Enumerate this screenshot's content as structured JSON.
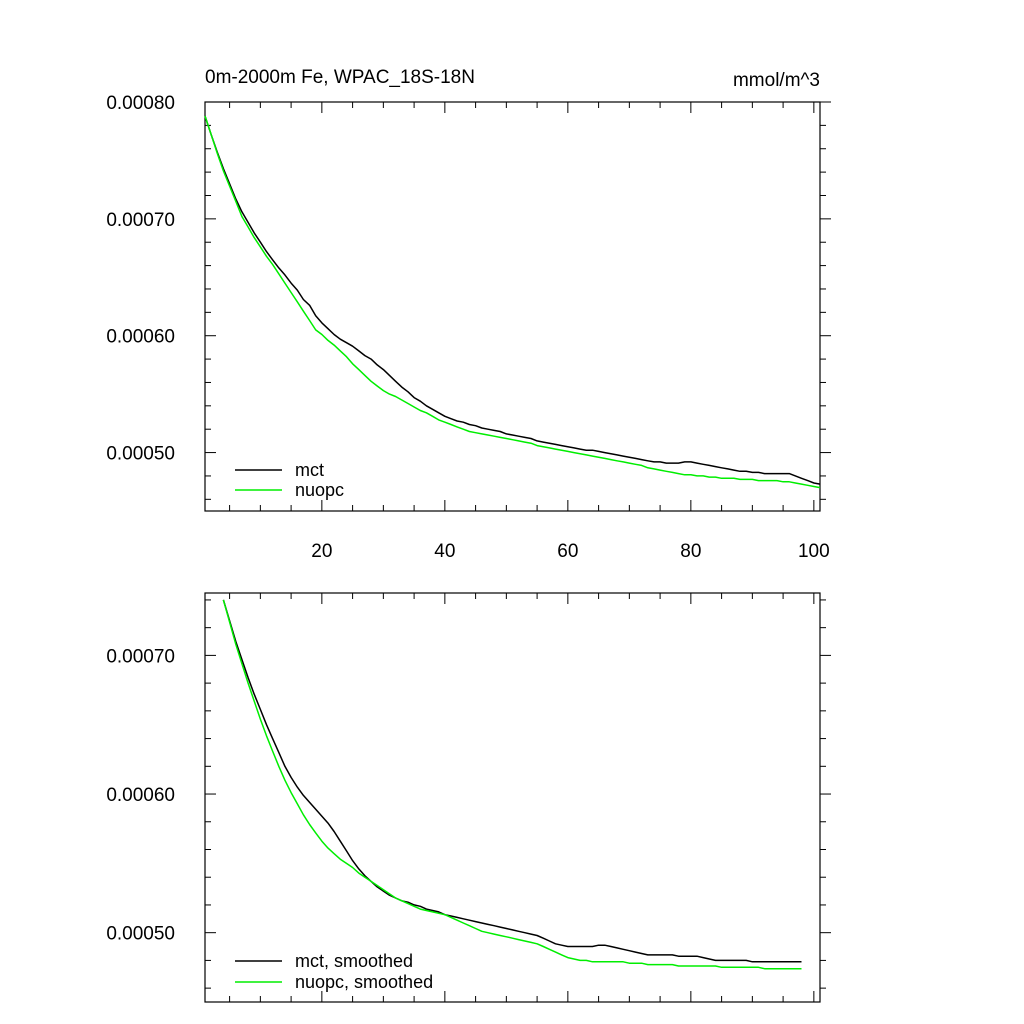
{
  "chart_data": [
    {
      "type": "line",
      "title": "0m-2000m Fe, WPAC_18S-18N",
      "units": "mmol/m^3",
      "xlim": [
        1,
        101
      ],
      "ylim": [
        0.00045,
        0.0008
      ],
      "x_ticks": [
        20,
        40,
        60,
        80,
        100
      ],
      "x_tick_labels": [
        "20",
        "40",
        "60",
        "80",
        "100"
      ],
      "y_ticks": [
        0.0005,
        0.0006,
        0.0007,
        0.0008
      ],
      "y_tick_labels": [
        "0.00050",
        "0.00060",
        "0.00070",
        "0.00080"
      ],
      "legend_position": "bottom-left",
      "x": [
        1,
        2,
        3,
        4,
        5,
        6,
        7,
        8,
        9,
        10,
        11,
        12,
        13,
        14,
        15,
        16,
        17,
        18,
        19,
        20,
        21,
        22,
        23,
        24,
        25,
        26,
        27,
        28,
        29,
        30,
        31,
        32,
        33,
        34,
        35,
        36,
        37,
        38,
        39,
        40,
        41,
        42,
        43,
        44,
        45,
        46,
        47,
        48,
        49,
        50,
        51,
        52,
        53,
        54,
        55,
        56,
        57,
        58,
        59,
        60,
        61,
        62,
        63,
        64,
        65,
        66,
        67,
        68,
        69,
        70,
        71,
        72,
        73,
        74,
        75,
        76,
        77,
        78,
        79,
        80,
        81,
        82,
        83,
        84,
        85,
        86,
        87,
        88,
        89,
        90,
        91,
        92,
        93,
        94,
        95,
        96,
        97,
        98,
        99,
        100,
        101
      ],
      "series": [
        {
          "name": "mct",
          "color": "#000000",
          "values": [
            0.000788,
            0.000772,
            0.000757,
            0.000743,
            0.00073,
            0.000717,
            0.000706,
            0.000697,
            0.000688,
            0.00068,
            0.000672,
            0.000665,
            0.000658,
            0.000652,
            0.000645,
            0.000639,
            0.000631,
            0.000626,
            0.000617,
            0.000611,
            0.000606,
            0.000601,
            0.000597,
            0.000594,
            0.000591,
            0.000587,
            0.000583,
            0.00058,
            0.000575,
            0.000571,
            0.000566,
            0.000561,
            0.000556,
            0.000552,
            0.000547,
            0.000544,
            0.00054,
            0.000537,
            0.000534,
            0.000531,
            0.000529,
            0.000527,
            0.000526,
            0.000524,
            0.000523,
            0.000521,
            0.00052,
            0.000519,
            0.000518,
            0.000516,
            0.000515,
            0.000514,
            0.000513,
            0.000512,
            0.00051,
            0.000509,
            0.000508,
            0.000507,
            0.000506,
            0.000505,
            0.000504,
            0.000503,
            0.000502,
            0.000502,
            0.000501,
            0.0005,
            0.000499,
            0.000498,
            0.000497,
            0.000496,
            0.000495,
            0.000494,
            0.000493,
            0.000492,
            0.000492,
            0.000491,
            0.000491,
            0.000491,
            0.000492,
            0.000492,
            0.000491,
            0.00049,
            0.000489,
            0.000488,
            0.000487,
            0.000486,
            0.000485,
            0.000484,
            0.000484,
            0.000483,
            0.000483,
            0.000482,
            0.000482,
            0.000482,
            0.000482,
            0.000482,
            0.00048,
            0.000478,
            0.000476,
            0.000474,
            0.000473
          ]
        },
        {
          "name": "nuopc",
          "color": "#00ee00",
          "values": [
            0.000788,
            0.000772,
            0.000756,
            0.000741,
            0.000728,
            0.000715,
            0.000702,
            0.000693,
            0.000684,
            0.000676,
            0.000668,
            0.000661,
            0.000653,
            0.000645,
            0.000637,
            0.000629,
            0.000621,
            0.000613,
            0.000605,
            0.000601,
            0.000596,
            0.000592,
            0.000587,
            0.000582,
            0.000576,
            0.000571,
            0.000566,
            0.000561,
            0.000557,
            0.000553,
            0.00055,
            0.000548,
            0.000545,
            0.000542,
            0.000539,
            0.000536,
            0.000534,
            0.000531,
            0.000528,
            0.000526,
            0.000524,
            0.000522,
            0.00052,
            0.000518,
            0.000517,
            0.000516,
            0.000515,
            0.000514,
            0.000513,
            0.000512,
            0.000511,
            0.00051,
            0.000509,
            0.000508,
            0.000506,
            0.000505,
            0.000504,
            0.000503,
            0.000502,
            0.000501,
            0.0005,
            0.000499,
            0.000498,
            0.000497,
            0.000496,
            0.000495,
            0.000494,
            0.000493,
            0.000492,
            0.000491,
            0.00049,
            0.000489,
            0.000487,
            0.000486,
            0.000485,
            0.000484,
            0.000483,
            0.000482,
            0.000481,
            0.000481,
            0.00048,
            0.00048,
            0.000479,
            0.000479,
            0.000478,
            0.000478,
            0.000478,
            0.000477,
            0.000477,
            0.000477,
            0.000476,
            0.000476,
            0.000476,
            0.000476,
            0.000475,
            0.000475,
            0.000474,
            0.000473,
            0.000472,
            0.000471,
            0.00047
          ]
        }
      ]
    },
    {
      "type": "line",
      "title": "",
      "xlim": [
        1,
        101
      ],
      "ylim": [
        0.00045,
        0.000745
      ],
      "x_ticks": [
        20,
        40,
        60,
        80,
        100
      ],
      "y_ticks": [
        0.0005,
        0.0006,
        0.0007
      ],
      "y_tick_labels": [
        "0.00050",
        "0.00060",
        "0.00070"
      ],
      "legend_position": "bottom-left",
      "x": [
        4,
        5,
        6,
        7,
        8,
        9,
        10,
        11,
        12,
        13,
        14,
        15,
        16,
        17,
        18,
        19,
        20,
        21,
        22,
        23,
        24,
        25,
        26,
        27,
        28,
        29,
        30,
        31,
        32,
        33,
        34,
        35,
        36,
        37,
        38,
        39,
        40,
        41,
        42,
        43,
        44,
        45,
        46,
        47,
        48,
        49,
        50,
        51,
        52,
        53,
        54,
        55,
        56,
        57,
        58,
        59,
        60,
        61,
        62,
        63,
        64,
        65,
        66,
        67,
        68,
        69,
        70,
        71,
        72,
        73,
        74,
        75,
        76,
        77,
        78,
        79,
        80,
        81,
        82,
        83,
        84,
        85,
        86,
        87,
        88,
        89,
        90,
        91,
        92,
        93,
        94,
        95,
        96,
        97,
        98
      ],
      "series": [
        {
          "name": "mct, smoothed",
          "color": "#000000",
          "values": [
            0.00074,
            0.000725,
            0.00071,
            0.000697,
            0.000684,
            0.000672,
            0.000661,
            0.00065,
            0.00064,
            0.00063,
            0.00062,
            0.000612,
            0.000605,
            0.000599,
            0.000594,
            0.000589,
            0.000584,
            0.000579,
            0.000573,
            0.000566,
            0.000559,
            0.000552,
            0.000546,
            0.000541,
            0.000537,
            0.000533,
            0.00053,
            0.000527,
            0.000525,
            0.000523,
            0.000522,
            0.00052,
            0.000519,
            0.000517,
            0.000516,
            0.000515,
            0.000513,
            0.000512,
            0.000511,
            0.00051,
            0.000509,
            0.000508,
            0.000507,
            0.000506,
            0.000505,
            0.000504,
            0.000503,
            0.000502,
            0.000501,
            0.0005,
            0.000499,
            0.000498,
            0.000496,
            0.000494,
            0.000492,
            0.000491,
            0.00049,
            0.00049,
            0.00049,
            0.00049,
            0.00049,
            0.000491,
            0.000491,
            0.00049,
            0.000489,
            0.000488,
            0.000487,
            0.000486,
            0.000485,
            0.000484,
            0.000484,
            0.000484,
            0.000484,
            0.000484,
            0.000483,
            0.000483,
            0.000483,
            0.000483,
            0.000482,
            0.000481,
            0.00048,
            0.00048,
            0.00048,
            0.00048,
            0.00048,
            0.00048,
            0.000479,
            0.000479,
            0.000479,
            0.000479,
            0.000479,
            0.000479,
            0.000479,
            0.000479,
            0.000479
          ]
        },
        {
          "name": "nuopc, smoothed",
          "color": "#00ee00",
          "values": [
            0.00074,
            0.000724,
            0.000708,
            0.000694,
            0.00068,
            0.000667,
            0.000654,
            0.000642,
            0.000631,
            0.00062,
            0.00061,
            0.000601,
            0.000593,
            0.000585,
            0.000578,
            0.000572,
            0.000566,
            0.000561,
            0.000557,
            0.000553,
            0.00055,
            0.000547,
            0.000543,
            0.00054,
            0.000537,
            0.000534,
            0.000531,
            0.000528,
            0.000525,
            0.000523,
            0.000521,
            0.000519,
            0.000517,
            0.000516,
            0.000515,
            0.000514,
            0.000513,
            0.000511,
            0.000509,
            0.000507,
            0.000505,
            0.000503,
            0.000501,
            0.0005,
            0.000499,
            0.000498,
            0.000497,
            0.000496,
            0.000495,
            0.000494,
            0.000493,
            0.000492,
            0.00049,
            0.000488,
            0.000486,
            0.000484,
            0.000482,
            0.000481,
            0.00048,
            0.00048,
            0.000479,
            0.000479,
            0.000479,
            0.000479,
            0.000479,
            0.000479,
            0.000478,
            0.000478,
            0.000478,
            0.000477,
            0.000477,
            0.000477,
            0.000477,
            0.000477,
            0.000476,
            0.000476,
            0.000476,
            0.000476,
            0.000476,
            0.000476,
            0.000476,
            0.000475,
            0.000475,
            0.000475,
            0.000475,
            0.000475,
            0.000475,
            0.000475,
            0.000474,
            0.000474,
            0.000474,
            0.000474,
            0.000474,
            0.000474,
            0.000474
          ]
        }
      ]
    }
  ]
}
